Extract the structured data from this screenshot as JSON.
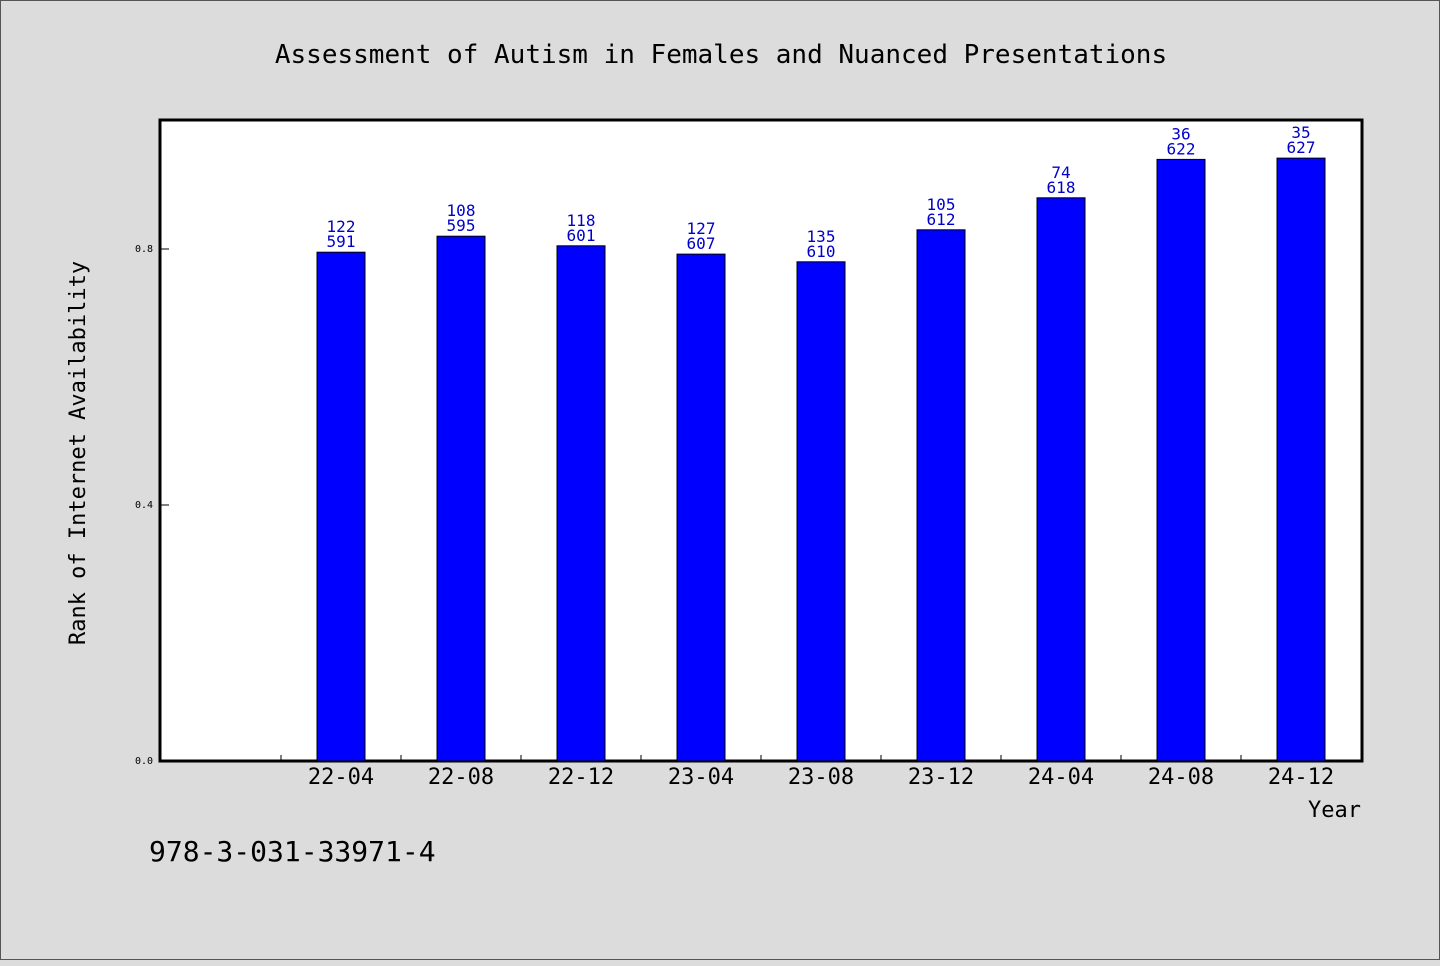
{
  "chart_data": {
    "type": "bar",
    "title": "Assessment of Autism in Females and Nuanced Presentations",
    "xlabel": "Year",
    "ylabel": "Rank of Internet Availability",
    "categories": [
      "22-04",
      "22-08",
      "22-12",
      "23-04",
      "23-08",
      "23-12",
      "24-04",
      "24-08",
      "24-12"
    ],
    "values": [
      0.795,
      0.82,
      0.805,
      0.792,
      0.78,
      0.83,
      0.88,
      0.94,
      0.942
    ],
    "bar_labels_top": [
      "122",
      "108",
      "118",
      "127",
      "135",
      "105",
      "74",
      "36",
      "35"
    ],
    "bar_labels_bottom": [
      "591",
      "595",
      "601",
      "607",
      "610",
      "612",
      "618",
      "622",
      "627"
    ],
    "yticks": [
      "0.0",
      "0.4",
      "0.8"
    ],
    "ylim": [
      0,
      1.0
    ],
    "grid": false,
    "bar_color": "#0000ff",
    "label_color": "#0000cc"
  },
  "footer": {
    "isbn": "978-3-031-33971-4"
  }
}
